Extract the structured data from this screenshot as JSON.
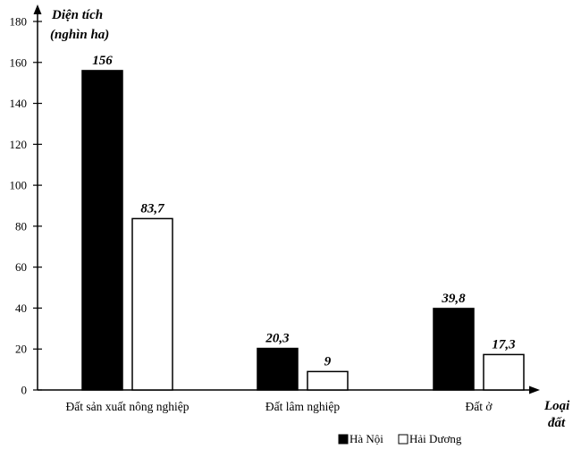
{
  "chart_data": {
    "type": "bar",
    "ylabel_line1": "Diện tích",
    "ylabel_line2": "(nghìn ha)",
    "xlabel_line1": "Loại",
    "xlabel_line2": "đất",
    "categories": [
      "Đất sản xuất nông nghiệp",
      "Đất lâm nghiệp",
      "Đất ở"
    ],
    "series": [
      {
        "name": "Hà Nội",
        "values": [
          156,
          20.3,
          39.8
        ],
        "value_labels": [
          "156",
          "20,3",
          "39,8"
        ],
        "color": "#000000"
      },
      {
        "name": "Hải Dương",
        "values": [
          83.7,
          9,
          17.3
        ],
        "value_labels": [
          "83,7",
          "9",
          "17,3"
        ],
        "color": "#ffffff"
      }
    ],
    "ylim": [
      0,
      180
    ],
    "yticks": [
      0,
      20,
      40,
      60,
      80,
      100,
      120,
      140,
      160,
      180
    ],
    "grid": false,
    "legend_position": "bottom-right"
  }
}
